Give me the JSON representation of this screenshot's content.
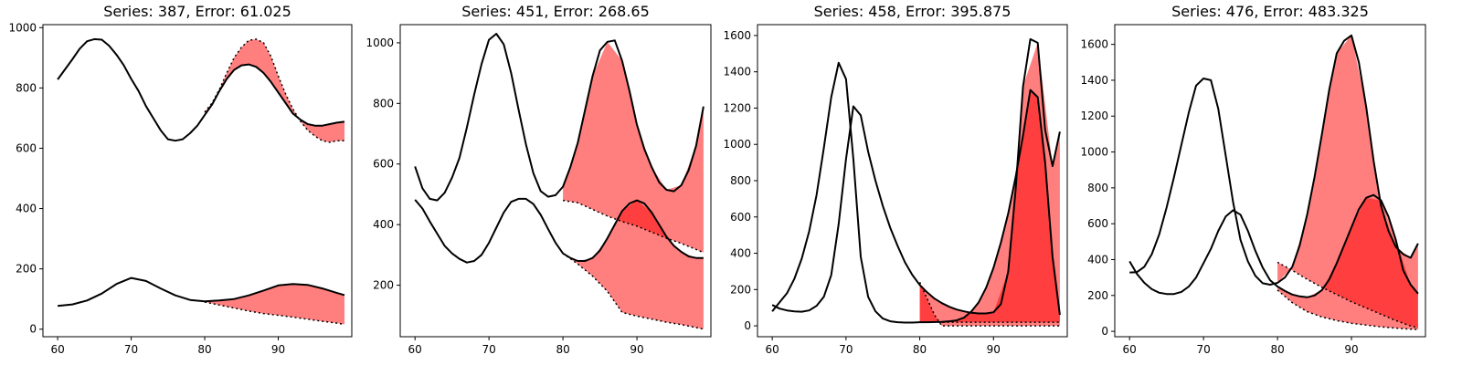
{
  "chart_data": [
    {
      "type": "line",
      "title": "Series: 387, Error: 61.025",
      "xlim": [
        58,
        100
      ],
      "ylim": [
        -25,
        1010
      ],
      "xticks": [
        60,
        70,
        80,
        90
      ],
      "yticks": [
        0,
        200,
        400,
        600,
        800,
        1000
      ],
      "series": [
        {
          "x": [
            60,
            62,
            63,
            64,
            65,
            66,
            67,
            68,
            69,
            70,
            71,
            72,
            73,
            74,
            75,
            76,
            77,
            78,
            79,
            80,
            81,
            82,
            83,
            84,
            85,
            86,
            87,
            88,
            89,
            90,
            91,
            92,
            93,
            94,
            95,
            96,
            97,
            98,
            99
          ],
          "values": [
            828,
            895,
            930,
            955,
            962,
            960,
            940,
            910,
            875,
            830,
            790,
            740,
            700,
            660,
            630,
            625,
            630,
            650,
            675,
            710,
            745,
            790,
            830,
            860,
            875,
            878,
            870,
            850,
            820,
            785,
            750,
            715,
            695,
            680,
            675,
            675,
            680,
            685,
            688
          ]
        },
        {
          "x": [
            60,
            62,
            64,
            66,
            68,
            70,
            72,
            74,
            76,
            78,
            80,
            82,
            84,
            86,
            88,
            90,
            92,
            94,
            96,
            98,
            99
          ],
          "values": [
            77,
            82,
            95,
            118,
            150,
            170,
            160,
            135,
            112,
            97,
            92,
            95,
            100,
            112,
            128,
            145,
            150,
            147,
            135,
            120,
            113
          ]
        }
      ],
      "forecast": [
        {
          "x": [
            80,
            81,
            82,
            83,
            84,
            85,
            86,
            87,
            88,
            89,
            90,
            91,
            92,
            93,
            94,
            95,
            96,
            97,
            98,
            99
          ],
          "values": [
            720,
            750,
            795,
            850,
            900,
            935,
            958,
            962,
            950,
            905,
            840,
            780,
            730,
            690,
            660,
            640,
            625,
            620,
            625,
            625
          ]
        },
        {
          "x": [
            80,
            82,
            84,
            86,
            88,
            90,
            92,
            94,
            96,
            98,
            99
          ],
          "values": [
            90,
            80,
            70,
            60,
            52,
            46,
            40,
            33,
            26,
            20,
            16
          ]
        }
      ]
    },
    {
      "type": "line",
      "title": "Series: 451, Error: 268.65",
      "xlim": [
        58,
        100
      ],
      "ylim": [
        30,
        1060
      ],
      "xticks": [
        60,
        70,
        80,
        90
      ],
      "yticks": [
        200,
        400,
        600,
        800,
        1000
      ],
      "series": [
        {
          "x": [
            60,
            61,
            62,
            63,
            64,
            65,
            66,
            67,
            68,
            69,
            70,
            71,
            72,
            73,
            74,
            75,
            76,
            77,
            78,
            79,
            80,
            81,
            82,
            83,
            84,
            85,
            86,
            87,
            88,
            89,
            90,
            91,
            92,
            93,
            94,
            95,
            96,
            97,
            98,
            99
          ],
          "values": [
            592,
            520,
            485,
            480,
            505,
            555,
            620,
            720,
            830,
            930,
            1010,
            1030,
            995,
            900,
            780,
            665,
            570,
            510,
            492,
            497,
            525,
            590,
            670,
            780,
            890,
            975,
            1003,
            1008,
            940,
            840,
            730,
            650,
            590,
            540,
            515,
            510,
            530,
            580,
            660,
            790
          ]
        },
        {
          "x": [
            60,
            61,
            62,
            63,
            64,
            65,
            66,
            67,
            68,
            69,
            70,
            71,
            72,
            73,
            74,
            75,
            76,
            77,
            78,
            79,
            80,
            81,
            82,
            83,
            84,
            85,
            86,
            87,
            88,
            89,
            90,
            91,
            92,
            93,
            94,
            95,
            96,
            97,
            98,
            99
          ],
          "values": [
            482,
            453,
            410,
            370,
            330,
            305,
            287,
            275,
            280,
            300,
            340,
            390,
            440,
            475,
            485,
            485,
            468,
            432,
            385,
            340,
            305,
            290,
            280,
            280,
            290,
            315,
            355,
            400,
            445,
            470,
            480,
            470,
            440,
            400,
            360,
            330,
            310,
            295,
            290,
            290
          ]
        }
      ],
      "forecast": [
        {
          "x": [
            80,
            82,
            84,
            86,
            88,
            90,
            92,
            94,
            96,
            98,
            99
          ],
          "values": [
            480,
            472,
            450,
            428,
            410,
            395,
            375,
            355,
            338,
            318,
            308
          ]
        },
        {
          "x": [
            80,
            82,
            84,
            86,
            88,
            90,
            92,
            94,
            96,
            98,
            99
          ],
          "values": [
            305,
            270,
            230,
            180,
            110,
            98,
            88,
            78,
            70,
            60,
            55
          ]
        }
      ]
    },
    {
      "type": "line",
      "title": "Series: 458, Error: 395.875",
      "xlim": [
        58,
        100
      ],
      "ylim": [
        -60,
        1660
      ],
      "xticks": [
        60,
        70,
        80,
        90
      ],
      "yticks": [
        0,
        200,
        400,
        600,
        800,
        1000,
        1200,
        1400,
        1600
      ],
      "series": [
        {
          "x": [
            60,
            61,
            62,
            63,
            64,
            65,
            66,
            67,
            68,
            69,
            70,
            71,
            72,
            73,
            74,
            75,
            76,
            77,
            78,
            79,
            80,
            81,
            82,
            83,
            84,
            85,
            86,
            87,
            88,
            89,
            90,
            91,
            92,
            93,
            94,
            95,
            96,
            97,
            98,
            99
          ],
          "values": [
            80,
            130,
            180,
            260,
            370,
            520,
            720,
            980,
            1260,
            1450,
            1360,
            920,
            380,
            160,
            80,
            40,
            25,
            20,
            18,
            18,
            20,
            20,
            21,
            22,
            25,
            30,
            45,
            80,
            130,
            210,
            320,
            460,
            620,
            820,
            1050,
            1300,
            1260,
            900,
            380,
            60
          ]
        },
        {
          "x": [
            60,
            61,
            62,
            63,
            64,
            65,
            66,
            67,
            68,
            69,
            70,
            71,
            72,
            73,
            74,
            75,
            76,
            77,
            78,
            79,
            80,
            81,
            82,
            83,
            84,
            85,
            86,
            87,
            88,
            89,
            90,
            91,
            92,
            93,
            94,
            95,
            96,
            97,
            98,
            99
          ],
          "values": [
            115,
            95,
            85,
            80,
            78,
            85,
            110,
            160,
            280,
            560,
            920,
            1210,
            1160,
            960,
            800,
            660,
            540,
            440,
            350,
            280,
            225,
            185,
            150,
            125,
            105,
            90,
            80,
            72,
            68,
            68,
            75,
            120,
            300,
            750,
            1320,
            1580,
            1560,
            1080,
            880,
            1070
          ]
        }
      ],
      "forecast": [
        {
          "x": [
            80,
            81,
            82,
            83,
            84,
            85,
            86,
            87,
            88,
            89,
            90,
            91,
            92,
            93,
            94,
            95,
            96,
            97,
            98,
            99
          ],
          "values": [
            240,
            150,
            60,
            0,
            0,
            0,
            0,
            0,
            0,
            0,
            0,
            0,
            0,
            0,
            0,
            0,
            0,
            0,
            0,
            0
          ]
        },
        {
          "x": [
            80,
            82,
            84,
            86,
            88,
            90,
            92,
            94,
            96,
            98,
            99
          ],
          "values": [
            20,
            20,
            20,
            20,
            20,
            20,
            20,
            20,
            20,
            20,
            20
          ]
        }
      ]
    },
    {
      "type": "line",
      "title": "Series: 476, Error: 483.325",
      "xlim": [
        58,
        100
      ],
      "ylim": [
        -30,
        1710
      ],
      "xticks": [
        60,
        70,
        80,
        90
      ],
      "yticks": [
        0,
        200,
        400,
        600,
        800,
        1000,
        1200,
        1400,
        1600
      ],
      "series": [
        {
          "x": [
            60,
            61,
            62,
            63,
            64,
            65,
            66,
            67,
            68,
            69,
            70,
            71,
            72,
            73,
            74,
            75,
            76,
            77,
            78,
            79,
            80,
            81,
            82,
            83,
            84,
            85,
            86,
            87,
            88,
            89,
            90,
            91,
            92,
            93,
            94,
            95,
            96,
            97,
            98,
            99
          ],
          "values": [
            328,
            330,
            360,
            430,
            540,
            690,
            860,
            1040,
            1220,
            1370,
            1410,
            1400,
            1240,
            980,
            720,
            510,
            390,
            310,
            268,
            260,
            270,
            300,
            360,
            480,
            650,
            860,
            1100,
            1350,
            1550,
            1620,
            1650,
            1500,
            1250,
            950,
            700,
            560,
            470,
            430,
            410,
            490
          ]
        },
        {
          "x": [
            60,
            61,
            62,
            63,
            64,
            65,
            66,
            67,
            68,
            69,
            70,
            71,
            72,
            73,
            74,
            75,
            76,
            77,
            78,
            79,
            80,
            81,
            82,
            83,
            84,
            85,
            86,
            87,
            88,
            89,
            90,
            91,
            92,
            93,
            94,
            95,
            96,
            97,
            98,
            99
          ],
          "values": [
            390,
            320,
            270,
            235,
            215,
            208,
            208,
            220,
            250,
            300,
            380,
            460,
            560,
            640,
            675,
            650,
            560,
            450,
            355,
            285,
            250,
            225,
            205,
            195,
            190,
            200,
            230,
            290,
            380,
            480,
            580,
            680,
            745,
            760,
            730,
            640,
            510,
            340,
            260,
            210
          ]
        }
      ],
      "forecast": [
        {
          "x": [
            80,
            82,
            84,
            86,
            88,
            90,
            92,
            94,
            96,
            98,
            99
          ],
          "values": [
            385,
            340,
            290,
            245,
            205,
            165,
            130,
            95,
            60,
            30,
            20
          ]
        },
        {
          "x": [
            80,
            82,
            84,
            86,
            88,
            90,
            92,
            94,
            96,
            98,
            99
          ],
          "values": [
            230,
            160,
            110,
            80,
            60,
            45,
            35,
            25,
            18,
            12,
            10
          ]
        }
      ]
    }
  ]
}
